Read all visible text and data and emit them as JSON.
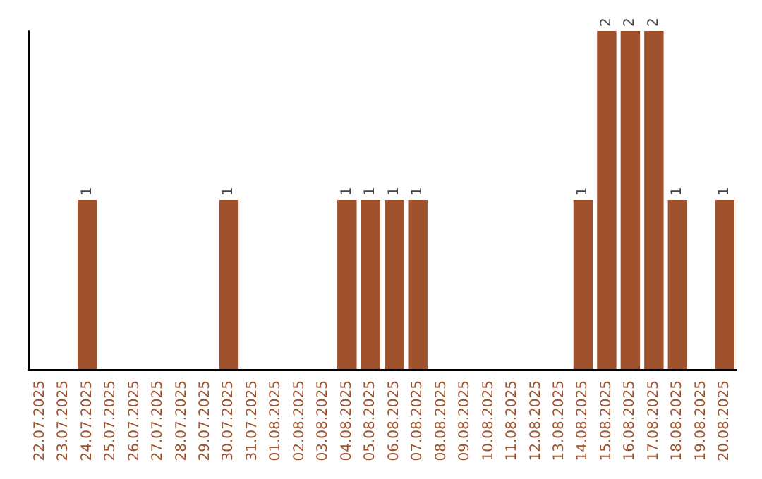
{
  "chart_data": {
    "type": "bar",
    "categories": [
      "22.07.2025",
      "23.07.2025",
      "24.07.2025",
      "25.07.2025",
      "26.07.2025",
      "27.07.2025",
      "28.07.2025",
      "29.07.2025",
      "30.07.2025",
      "31.07.2025",
      "01.08.2025",
      "02.08.2025",
      "03.08.2025",
      "04.08.2025",
      "05.08.2025",
      "06.08.2025",
      "07.08.2025",
      "08.08.2025",
      "09.08.2025",
      "10.08.2025",
      "11.08.2025",
      "12.08.2025",
      "13.08.2025",
      "14.08.2025",
      "15.08.2025",
      "16.08.2025",
      "17.08.2025",
      "18.08.2025",
      "19.08.2025",
      "20.08.2025"
    ],
    "values": [
      0,
      0,
      1,
      0,
      0,
      0,
      0,
      0,
      1,
      0,
      0,
      0,
      0,
      1,
      1,
      1,
      1,
      0,
      0,
      0,
      0,
      0,
      0,
      1,
      2,
      2,
      2,
      1,
      0,
      1
    ],
    "value_labels": [
      null,
      null,
      "1",
      null,
      null,
      null,
      null,
      null,
      "1",
      null,
      null,
      null,
      null,
      "1",
      "1",
      "1",
      "1",
      null,
      null,
      null,
      null,
      null,
      null,
      "1",
      "2",
      "2",
      "2",
      "1",
      null,
      "1"
    ],
    "color": "#a0522d",
    "tick_labels": "x"
  }
}
